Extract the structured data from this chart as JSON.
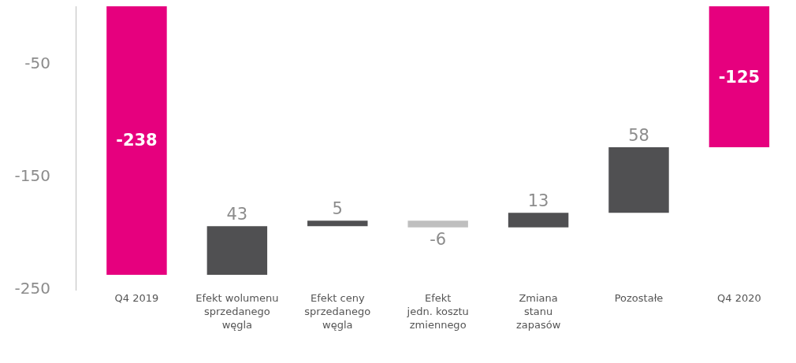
{
  "chart_data": {
    "type": "bar",
    "categories": [
      "Q4 2019",
      "Efekt wolumenu\nsprzedanego\nwęgla",
      "Efekt ceny\nsprzedanego\nwęgla",
      "Efekt\njedn. kosztu\nzmiennego",
      "Zmiana\nstanu\nzapasów",
      "Pozostałe",
      "Q4 2020"
    ],
    "values": [
      -238,
      43,
      5,
      -6,
      13,
      58,
      -125
    ],
    "base": [
      0,
      -238,
      -195,
      -190,
      -196,
      -183,
      0
    ],
    "colors": [
      "#e6007e",
      "#505052",
      "#505052",
      "#bfbfbf",
      "#505052",
      "#505052",
      "#e6007e"
    ],
    "ylim": [
      -252,
      0
    ],
    "yticks": [
      -50,
      -150,
      -250
    ],
    "data_labels": true
  }
}
